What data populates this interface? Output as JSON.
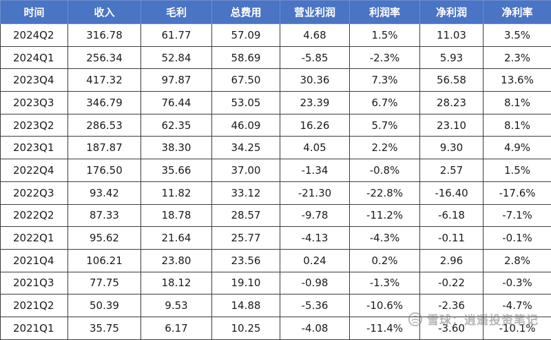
{
  "headers": [
    "时间",
    "收入",
    "毛利",
    "总费用",
    "营业利润",
    "利润率",
    "净利润",
    "净利率"
  ],
  "rows": [
    [
      "2024Q2",
      "316.78",
      "61.77",
      "57.09",
      "4.68",
      "1.5%",
      "11.03",
      "3.5%"
    ],
    [
      "2024Q1",
      "256.34",
      "52.84",
      "58.69",
      "-5.85",
      "-2.3%",
      "5.93",
      "2.3%"
    ],
    [
      "2023Q4",
      "417.32",
      "97.87",
      "67.50",
      "30.36",
      "7.3%",
      "56.58",
      "13.6%"
    ],
    [
      "2023Q3",
      "346.79",
      "76.44",
      "53.05",
      "23.39",
      "6.7%",
      "28.23",
      "8.1%"
    ],
    [
      "2023Q2",
      "286.53",
      "62.35",
      "46.09",
      "16.26",
      "5.7%",
      "23.10",
      "8.1%"
    ],
    [
      "2023Q1",
      "187.87",
      "38.30",
      "34.25",
      "4.05",
      "2.2%",
      "9.30",
      "4.9%"
    ],
    [
      "2022Q4",
      "176.50",
      "35.66",
      "37.00",
      "-1.34",
      "-0.8%",
      "2.57",
      "1.5%"
    ],
    [
      "2022Q3",
      "93.42",
      "11.82",
      "33.12",
      "-21.30",
      "-22.8%",
      "-16.40",
      "-17.6%"
    ],
    [
      "2022Q2",
      "87.33",
      "18.78",
      "28.57",
      "-9.78",
      "-11.2%",
      "-6.18",
      "-7.1%"
    ],
    [
      "2022Q1",
      "95.62",
      "21.64",
      "25.77",
      "-4.13",
      "-4.3%",
      "-0.11",
      "-0.1%"
    ],
    [
      "2021Q4",
      "106.21",
      "23.80",
      "23.56",
      "0.24",
      "0.2%",
      "2.96",
      "2.8%"
    ],
    [
      "2021Q3",
      "77.75",
      "18.12",
      "19.10",
      "-0.98",
      "-1.3%",
      "-0.22",
      "-0.3%"
    ],
    [
      "2021Q2",
      "50.39",
      "9.53",
      "14.88",
      "-5.36",
      "-10.6%",
      "-2.36",
      "-4.7%"
    ],
    [
      "2021Q1",
      "35.75",
      "6.17",
      "10.25",
      "-4.08",
      "-11.4%",
      "-3.60",
      "-10.1%"
    ]
  ],
  "watermark": {
    "text": "雪球：逍遥投资笔记",
    "icon": "snowball-icon"
  },
  "colors": {
    "header_bg": "#4a74c4",
    "header_text": "#ffffff",
    "border": "#3a3a3a"
  }
}
